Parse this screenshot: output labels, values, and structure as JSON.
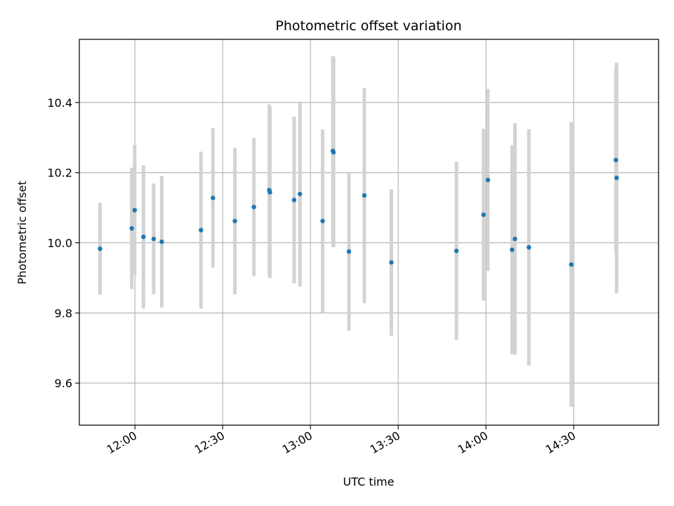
{
  "chart_data": {
    "type": "scatter",
    "title": "Photometric offset variation",
    "xlabel": "UTC time",
    "ylabel": "Photometric offset",
    "xlim": [
      "11:41",
      "14:59"
    ],
    "ylim": [
      9.48,
      10.58
    ],
    "x_ticks": [
      "12:00",
      "12:30",
      "13:00",
      "13:30",
      "14:00",
      "14:30"
    ],
    "y_ticks": [
      9.6,
      9.8,
      10.0,
      10.2,
      10.4
    ],
    "grid": true,
    "legend": "none",
    "colors": {
      "point": "#1f77b4",
      "errorbar": "#d3d3d3",
      "grid": "#b0b0b0"
    },
    "points": [
      {
        "x": "11:48:05",
        "y": 9.983,
        "err": 0.131
      },
      {
        "x": "11:58:55",
        "y": 10.041,
        "err": 0.173
      },
      {
        "x": "11:59:55",
        "y": 10.093,
        "err": 0.185
      },
      {
        "x": "12:02:55",
        "y": 10.017,
        "err": 0.204
      },
      {
        "x": "12:06:25",
        "y": 10.011,
        "err": 0.158
      },
      {
        "x": "12:09:10",
        "y": 10.003,
        "err": 0.188
      },
      {
        "x": "12:22:35",
        "y": 10.036,
        "err": 0.224
      },
      {
        "x": "12:26:40",
        "y": 10.128,
        "err": 0.199
      },
      {
        "x": "12:34:10",
        "y": 10.062,
        "err": 0.209
      },
      {
        "x": "12:40:40",
        "y": 10.102,
        "err": 0.197
      },
      {
        "x": "12:45:55",
        "y": 10.15,
        "err": 0.245
      },
      {
        "x": "12:46:10",
        "y": 10.144,
        "err": 0.245
      },
      {
        "x": "12:54:25",
        "y": 10.122,
        "err": 0.238
      },
      {
        "x": "12:56:25",
        "y": 10.139,
        "err": 0.264
      },
      {
        "x": "13:04:10",
        "y": 10.062,
        "err": 0.261
      },
      {
        "x": "13:07:40",
        "y": 10.262,
        "err": 0.271
      },
      {
        "x": "13:07:55",
        "y": 10.258,
        "err": 0.271
      },
      {
        "x": "13:13:10",
        "y": 9.975,
        "err": 0.226
      },
      {
        "x": "13:18:25",
        "y": 10.135,
        "err": 0.307
      },
      {
        "x": "13:27:40",
        "y": 9.944,
        "err": 0.209
      },
      {
        "x": "13:49:55",
        "y": 9.977,
        "err": 0.254
      },
      {
        "x": "13:59:10",
        "y": 10.08,
        "err": 0.245
      },
      {
        "x": "14:00:40",
        "y": 10.179,
        "err": 0.26
      },
      {
        "x": "14:08:55",
        "y": 9.98,
        "err": 0.298
      },
      {
        "x": "14:09:55",
        "y": 10.011,
        "err": 0.33
      },
      {
        "x": "14:14:40",
        "y": 9.987,
        "err": 0.337
      },
      {
        "x": "14:29:10",
        "y": 9.938,
        "err": 0.406
      },
      {
        "x": "14:44:25",
        "y": 10.236,
        "err": 0.265
      },
      {
        "x": "14:44:40",
        "y": 10.185,
        "err": 0.329
      }
    ]
  }
}
